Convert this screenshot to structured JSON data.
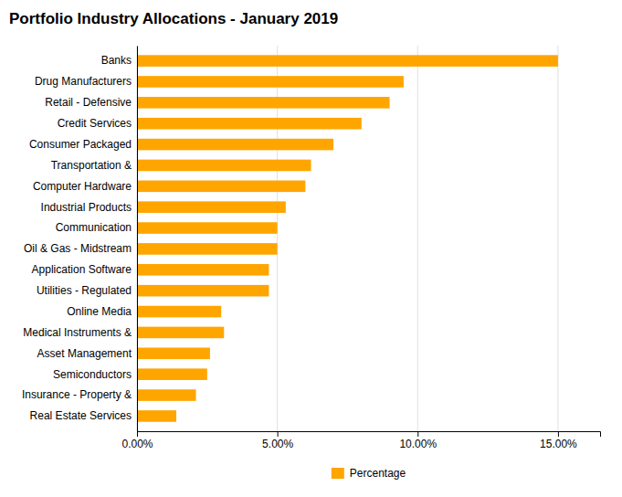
{
  "chart_data": {
    "type": "bar",
    "orientation": "horizontal",
    "title": "Portfolio Industry Allocations - January 2019",
    "categories": [
      "Banks",
      "Drug Manufacturers",
      "Retail - Defensive",
      "Credit Services",
      "Consumer Packaged",
      "Transportation &",
      "Computer Hardware",
      "Industrial Products",
      "Communication",
      "Oil & Gas - Midstream",
      "Application Software",
      "Utilities - Regulated",
      "Online Media",
      "Medical Instruments &",
      "Asset Management",
      "Semiconductors",
      "Insurance - Property &",
      "Real Estate Services"
    ],
    "series": [
      {
        "name": "Percentage",
        "color": "#FFA500",
        "values": [
          15.0,
          9.5,
          9.0,
          8.0,
          7.0,
          6.2,
          6.0,
          5.3,
          5.0,
          5.0,
          4.7,
          4.7,
          3.0,
          3.1,
          2.6,
          2.5,
          2.1,
          1.4
        ]
      }
    ],
    "xlim": [
      0,
      16.5
    ],
    "xticks": [
      {
        "value": 0,
        "label": "0.00%"
      },
      {
        "value": 5.0,
        "label": "5.00%"
      },
      {
        "value": 10.0,
        "label": "10.00%"
      },
      {
        "value": 15.0,
        "label": "15.00%"
      }
    ],
    "grid": true,
    "legend": "bottom"
  }
}
